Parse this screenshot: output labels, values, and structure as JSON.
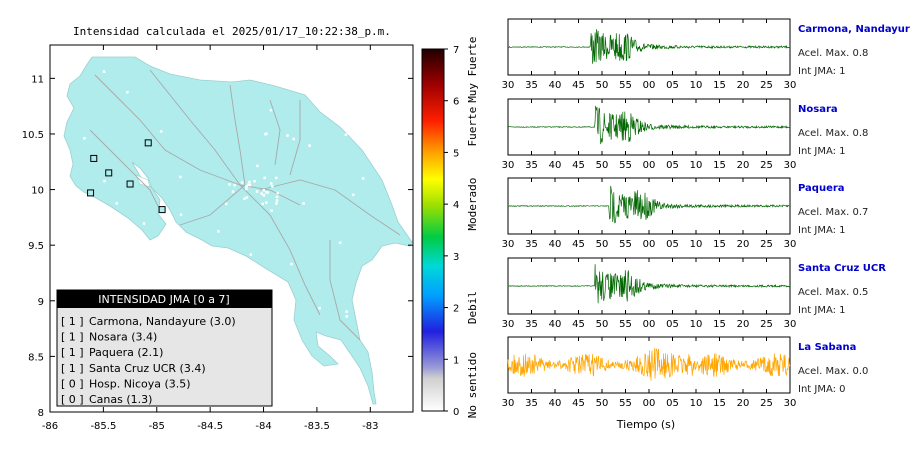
{
  "title": "Intensidad calculada el 2025/01/17_10:22:38_p.m.",
  "map": {
    "x_ticks": [
      "-86",
      "-85.5",
      "-85",
      "-84.5",
      "-84",
      "-83.5",
      "-83"
    ],
    "y_ticks": [
      "11",
      "10.5",
      "10",
      "9.5",
      "9",
      "8.5",
      "8"
    ],
    "land_color": "#b0ecec"
  },
  "colorbar": {
    "ticks": [
      "0",
      "1",
      "2",
      "3",
      "4",
      "5",
      "6",
      "7"
    ],
    "categories": [
      "No sentido",
      "Debil",
      "Moderado",
      "Fuerte",
      "Muy Fuerte"
    ]
  },
  "legend": {
    "title": "INTENSIDAD JMA [0 a 7]",
    "items": [
      {
        "level": "[ 1 ]",
        "name": "Carmona, Nandayure (3.0)"
      },
      {
        "level": "[ 1 ]",
        "name": "Nosara (3.4)"
      },
      {
        "level": "[ 1 ]",
        "name": "Paquera (2.1)"
      },
      {
        "level": "[ 1 ]",
        "name": "Santa Cruz UCR (3.4)"
      },
      {
        "level": "[ 0 ]",
        "name": "Hosp. Nicoya (3.5)"
      },
      {
        "level": "[ 0 ]",
        "name": "Canas (1.3)"
      }
    ]
  },
  "traces": {
    "xlabel": "Tiempo (s)",
    "ticks": [
      "30",
      "35",
      "40",
      "45",
      "50",
      "55",
      "00",
      "05",
      "10",
      "15",
      "20",
      "25",
      "30"
    ],
    "panels": [
      {
        "station": "Carmona, Nandayure",
        "accel": "Acel. Max. 0.8",
        "int": "Int JMA: 1",
        "color": "#006600"
      },
      {
        "station": "Nosara",
        "accel": "Acel. Max. 0.8",
        "int": "Int JMA: 1",
        "color": "#006600"
      },
      {
        "station": "Paquera",
        "accel": "Acel. Max. 0.7",
        "int": "Int JMA: 1",
        "color": "#006600"
      },
      {
        "station": "Santa Cruz UCR",
        "accel": "Acel. Max. 0.5",
        "int": "Int JMA: 1",
        "color": "#006600"
      },
      {
        "station": "La Sabana",
        "accel": "Acel. Max. 0.0",
        "int": "Int JMA: 0",
        "color": "#ffa500"
      }
    ]
  },
  "chart_data": [
    {
      "type": "scatter",
      "title": "Intensidad calculada el 2025/01/17_10:22:38_p.m.",
      "xlim": [
        -86,
        -82.6
      ],
      "ylim": [
        8,
        11.3
      ],
      "stations": [
        {
          "name": "Carmona, Nandayure",
          "lon": -85.25,
          "lat": 10.05,
          "jma": 1
        },
        {
          "name": "Nosara",
          "lon": -85.62,
          "lat": 9.97,
          "jma": 1
        },
        {
          "name": "Paquera",
          "lon": -84.95,
          "lat": 9.82,
          "jma": 1
        },
        {
          "name": "Santa Cruz UCR",
          "lon": -85.59,
          "lat": 10.28,
          "jma": 1
        },
        {
          "name": "Hosp. Nicoya",
          "lon": -85.45,
          "lat": 10.15,
          "jma": 0
        },
        {
          "name": "Canas",
          "lon": -85.08,
          "lat": 10.42,
          "jma": 0
        }
      ]
    },
    {
      "type": "line",
      "xlabel": "Tiempo (s)",
      "x_ticks": [
        "30",
        "35",
        "40",
        "45",
        "50",
        "55",
        "00",
        "05",
        "10",
        "15",
        "20",
        "25",
        "30"
      ],
      "series": [
        {
          "name": "Carmona, Nandayure",
          "pga": 0.8,
          "jma": 1,
          "onset": 47.5
        },
        {
          "name": "Nosara",
          "pga": 0.8,
          "jma": 1,
          "onset": 48.5
        },
        {
          "name": "Paquera",
          "pga": 0.7,
          "jma": 1,
          "onset": 51.5
        },
        {
          "name": "Santa Cruz UCR",
          "pga": 0.5,
          "jma": 1,
          "onset": 48.5
        },
        {
          "name": "La Sabana",
          "pga": 0.0,
          "jma": 0,
          "onset": 30
        }
      ]
    }
  ]
}
